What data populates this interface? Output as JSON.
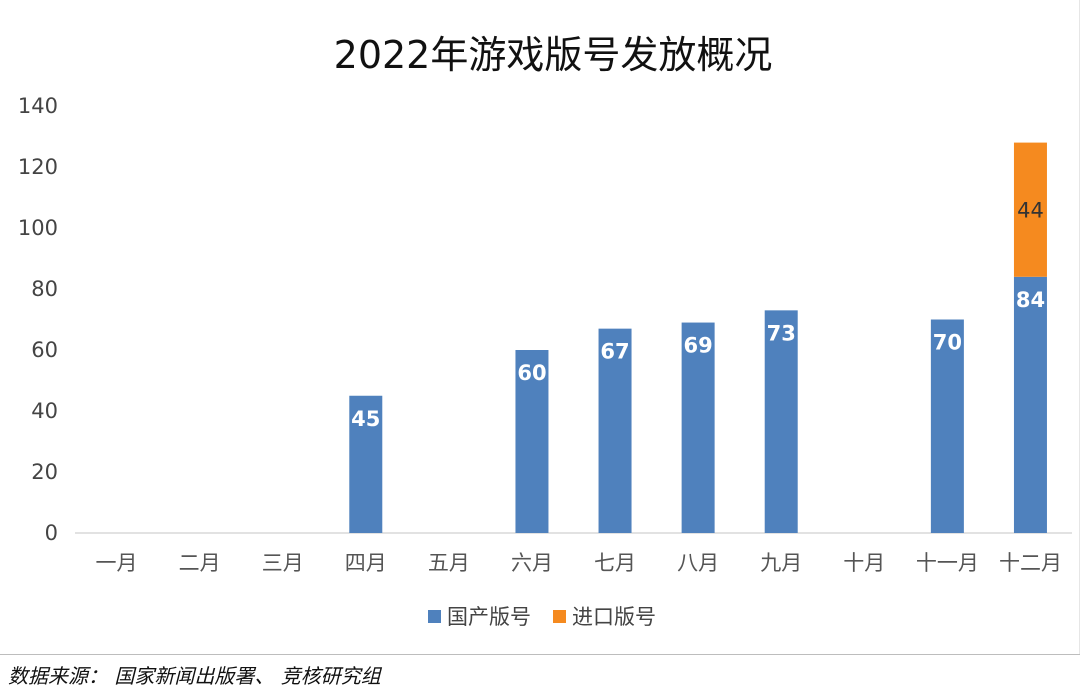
{
  "chart_data": {
    "type": "bar",
    "stacked": true,
    "title": "2022年游戏版号发放概况",
    "categories": [
      "一月",
      "二月",
      "三月",
      "四月",
      "五月",
      "六月",
      "七月",
      "八月",
      "九月",
      "十月",
      "十一月",
      "十二月"
    ],
    "series": [
      {
        "name": "国产版号",
        "color": "#4f81bd",
        "values": [
          0,
          0,
          0,
          45,
          0,
          60,
          67,
          69,
          73,
          0,
          70,
          84
        ]
      },
      {
        "name": "进口版号",
        "color": "#f58a1f",
        "values": [
          0,
          0,
          0,
          0,
          0,
          0,
          0,
          0,
          0,
          0,
          0,
          44
        ]
      }
    ],
    "yticks": [
      0,
      20,
      40,
      60,
      80,
      100,
      120,
      140
    ],
    "ylim": [
      0,
      140
    ],
    "grid": false,
    "legend_position": "bottom"
  },
  "source_note": "数据来源：  国家新闻出版署、 竞核研究组"
}
